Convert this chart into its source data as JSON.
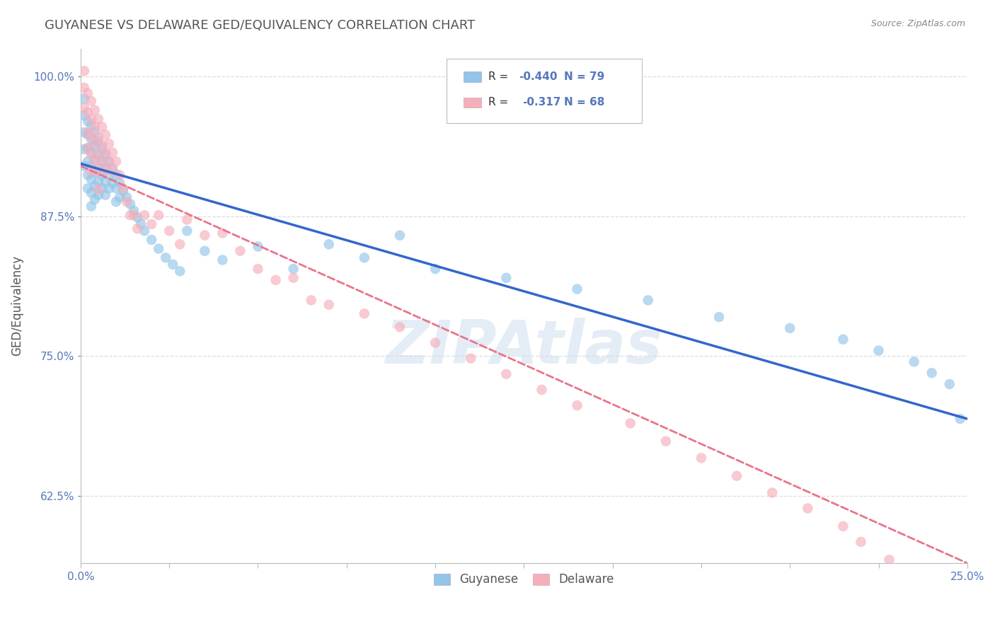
{
  "title": "GUYANESE VS DELAWARE GED/EQUIVALENCY CORRELATION CHART",
  "source": "Source: ZipAtlas.com",
  "ylabel": "GED/Equivalency",
  "xlim": [
    0.0,
    0.25
  ],
  "ylim": [
    0.565,
    1.025
  ],
  "xticks": [
    0.0,
    0.025,
    0.05,
    0.075,
    0.1,
    0.125,
    0.15,
    0.175,
    0.2,
    0.225,
    0.25
  ],
  "xtick_labels_show": [
    "0.0%",
    "",
    "",
    "",
    "",
    "",
    "",
    "",
    "",
    "",
    "25.0%"
  ],
  "yticks": [
    0.625,
    0.75,
    0.875,
    1.0
  ],
  "ytick_labels": [
    "62.5%",
    "75.0%",
    "87.5%",
    "100.0%"
  ],
  "legend_labels": [
    "Guyanese",
    "Delaware"
  ],
  "series1_color": "#92C5E8",
  "series2_color": "#F5AEBB",
  "line1_color": "#3366CC",
  "line2_color": "#E8758A",
  "R1": -0.44,
  "N1": 79,
  "R2": -0.317,
  "N2": 68,
  "watermark": "ZIPAtlas",
  "background_color": "#ffffff",
  "grid_color": "#dddddd",
  "title_color": "#555555",
  "axis_label_color": "#5577BB",
  "source_color": "#888888",
  "line1_x0": 0.0,
  "line1_y0": 0.922,
  "line1_x1": 0.25,
  "line1_y1": 0.694,
  "line2_x0": 0.0,
  "line2_y0": 0.92,
  "line2_x1": 0.25,
  "line2_y1": 0.565,
  "scatter1_x": [
    0.001,
    0.001,
    0.001,
    0.001,
    0.001,
    0.002,
    0.002,
    0.002,
    0.002,
    0.002,
    0.002,
    0.003,
    0.003,
    0.003,
    0.003,
    0.003,
    0.003,
    0.003,
    0.004,
    0.004,
    0.004,
    0.004,
    0.004,
    0.004,
    0.005,
    0.005,
    0.005,
    0.005,
    0.005,
    0.006,
    0.006,
    0.006,
    0.006,
    0.007,
    0.007,
    0.007,
    0.007,
    0.008,
    0.008,
    0.008,
    0.009,
    0.009,
    0.01,
    0.01,
    0.01,
    0.011,
    0.011,
    0.012,
    0.013,
    0.014,
    0.015,
    0.016,
    0.017,
    0.018,
    0.02,
    0.022,
    0.024,
    0.026,
    0.028,
    0.03,
    0.035,
    0.04,
    0.05,
    0.06,
    0.07,
    0.08,
    0.09,
    0.1,
    0.12,
    0.14,
    0.16,
    0.18,
    0.2,
    0.215,
    0.225,
    0.235,
    0.24,
    0.245,
    0.248
  ],
  "scatter1_y": [
    0.98,
    0.965,
    0.95,
    0.935,
    0.92,
    0.96,
    0.948,
    0.936,
    0.924,
    0.912,
    0.9,
    0.956,
    0.944,
    0.932,
    0.92,
    0.908,
    0.896,
    0.884,
    0.95,
    0.938,
    0.926,
    0.914,
    0.902,
    0.89,
    0.942,
    0.93,
    0.918,
    0.906,
    0.894,
    0.936,
    0.924,
    0.912,
    0.9,
    0.93,
    0.918,
    0.906,
    0.894,
    0.924,
    0.912,
    0.9,
    0.918,
    0.905,
    0.912,
    0.9,
    0.888,
    0.905,
    0.892,
    0.898,
    0.892,
    0.886,
    0.88,
    0.874,
    0.868,
    0.862,
    0.854,
    0.846,
    0.838,
    0.832,
    0.826,
    0.862,
    0.844,
    0.836,
    0.848,
    0.828,
    0.85,
    0.838,
    0.858,
    0.828,
    0.82,
    0.81,
    0.8,
    0.785,
    0.775,
    0.765,
    0.755,
    0.745,
    0.735,
    0.725,
    0.694
  ],
  "scatter2_x": [
    0.001,
    0.001,
    0.001,
    0.002,
    0.002,
    0.002,
    0.002,
    0.003,
    0.003,
    0.003,
    0.003,
    0.003,
    0.004,
    0.004,
    0.004,
    0.004,
    0.005,
    0.005,
    0.005,
    0.005,
    0.005,
    0.006,
    0.006,
    0.006,
    0.007,
    0.007,
    0.007,
    0.008,
    0.008,
    0.009,
    0.009,
    0.01,
    0.011,
    0.012,
    0.013,
    0.014,
    0.015,
    0.016,
    0.018,
    0.02,
    0.022,
    0.025,
    0.028,
    0.03,
    0.035,
    0.04,
    0.045,
    0.05,
    0.055,
    0.06,
    0.065,
    0.07,
    0.08,
    0.09,
    0.1,
    0.11,
    0.12,
    0.13,
    0.14,
    0.155,
    0.165,
    0.175,
    0.185,
    0.195,
    0.205,
    0.215,
    0.22,
    0.228
  ],
  "scatter2_y": [
    1.005,
    0.99,
    0.972,
    0.985,
    0.968,
    0.95,
    0.936,
    0.978,
    0.962,
    0.946,
    0.93,
    0.915,
    0.97,
    0.955,
    0.94,
    0.924,
    0.962,
    0.946,
    0.93,
    0.915,
    0.899,
    0.955,
    0.939,
    0.923,
    0.948,
    0.932,
    0.916,
    0.94,
    0.924,
    0.932,
    0.916,
    0.924,
    0.912,
    0.9,
    0.888,
    0.876,
    0.876,
    0.864,
    0.876,
    0.868,
    0.876,
    0.862,
    0.85,
    0.872,
    0.858,
    0.86,
    0.844,
    0.828,
    0.818,
    0.82,
    0.8,
    0.796,
    0.788,
    0.776,
    0.762,
    0.748,
    0.734,
    0.72,
    0.706,
    0.69,
    0.674,
    0.659,
    0.643,
    0.628,
    0.614,
    0.598,
    0.584,
    0.568
  ]
}
